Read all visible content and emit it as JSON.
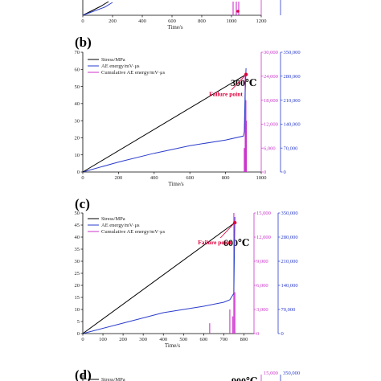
{
  "colors": {
    "stress": "#000000",
    "ae_energy": "#2a3ccc",
    "cumulative_ae": "#cc33cc",
    "failure": "#e0003c"
  },
  "chart_data": [
    {
      "panel": "(a)",
      "type": "line",
      "partial": "bottom-only",
      "xlabel": "Time/s",
      "xlim": [
        0,
        1200
      ],
      "x_ticks": [
        "0",
        "200",
        "400",
        "600",
        "800",
        "1000",
        "1200"
      ]
    },
    {
      "panel": "(b)",
      "type": "line",
      "temperature": "300℃",
      "annotation": "Failure point",
      "xlabel": "Time/s",
      "xlim": [
        0,
        1000
      ],
      "x_ticks": [
        "0",
        "200",
        "400",
        "600",
        "800",
        "1000"
      ],
      "ylim_stress": [
        0,
        70
      ],
      "stress_ticks": [
        "0",
        "10",
        "20",
        "30",
        "40",
        "50",
        "60",
        "70"
      ],
      "ylim_ae": [
        0,
        30000
      ],
      "ae_ticks": [
        "0",
        "6,000",
        "12,000",
        "18,000",
        "24,000",
        "30,000"
      ],
      "ylim_cum": [
        0,
        350000
      ],
      "cum_ticks": [
        "0",
        "70,000",
        "140,000",
        "210,000",
        "280,000",
        "350,000"
      ],
      "legend": [
        "Stress/MPa",
        "AE energy/mV·μs",
        "Cumulative AE energy/mV·μs"
      ],
      "stress": {
        "x": [
          0,
          915
        ],
        "y": [
          0,
          57
        ]
      },
      "ae_energy": {
        "x": [
          0,
          200,
          400,
          600,
          800,
          900,
          905,
          910,
          915
        ],
        "y": [
          0,
          2500,
          4700,
          6600,
          8000,
          9000,
          10000,
          20000,
          26000
        ]
      },
      "cumulative_spikes": {
        "x": [
          905,
          910,
          914,
          917
        ],
        "y": [
          70000,
          280000,
          210000,
          150000
        ]
      },
      "failure_point": {
        "x": 915,
        "stress": 57
      }
    },
    {
      "panel": "(c)",
      "type": "line",
      "temperature": "600℃",
      "annotation": "Failure point",
      "xlabel": "Time/s",
      "xlim": [
        0,
        850
      ],
      "x_ticks": [
        "0",
        "100",
        "200",
        "300",
        "400",
        "500",
        "600",
        "700",
        "800"
      ],
      "ylim_stress": [
        0,
        50
      ],
      "stress_ticks": [
        "0",
        "5",
        "10",
        "15",
        "20",
        "25",
        "30",
        "35",
        "40",
        "45",
        "50"
      ],
      "ylim_ae": [
        0,
        15000
      ],
      "ae_ticks": [
        "0",
        "3,000",
        "6,000",
        "9,000",
        "12,000",
        "15,000"
      ],
      "ylim_cum": [
        0,
        350000
      ],
      "cum_ticks": [
        "0",
        "70,000",
        "140,000",
        "210,000",
        "280,000",
        "350,000"
      ],
      "legend": [
        "Stress/MPa",
        "AE energy/mV·μs",
        "Cumulative AE energy/mV·μs"
      ],
      "stress": {
        "x": [
          0,
          755
        ],
        "y": [
          0,
          46
        ]
      },
      "ae_energy": {
        "x": [
          0,
          200,
          400,
          600,
          700,
          730,
          750,
          755
        ],
        "y": [
          0,
          1300,
          2600,
          3400,
          3900,
          4200,
          5000,
          14500
        ]
      },
      "cumulative_spikes": {
        "x": [
          630,
          730,
          745,
          750,
          755
        ],
        "y": [
          30000,
          70000,
          50000,
          350000,
          120000
        ]
      },
      "failure_point": {
        "x": 755,
        "stress": 46
      }
    },
    {
      "panel": "(d)",
      "type": "line",
      "temperature": "900℃",
      "partial": "top-only",
      "legend": [
        "Stress/MPa"
      ],
      "ae_ticks": [
        "15,000"
      ],
      "cum_ticks": [
        "350,000"
      ]
    }
  ]
}
